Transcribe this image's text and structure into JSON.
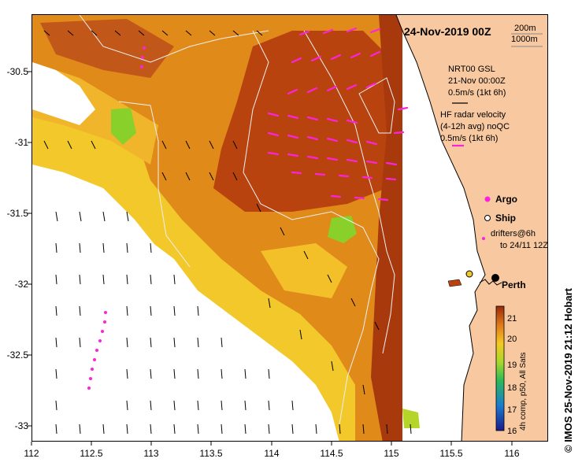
{
  "map": {
    "title": "24-Nov-2019 00Z",
    "credit": "© IMOS 25-Nov-2019 21:12 Hobart",
    "bathy_legend": [
      "200m",
      "1000m"
    ],
    "x_ticks": [
      "112",
      "112.5",
      "113",
      "113.5",
      "114",
      "114.5",
      "115",
      "115.5",
      "116"
    ],
    "y_ticks": [
      "-30.5",
      "-31",
      "-31.5",
      "-32",
      "-32.5",
      "-33"
    ],
    "place_label": "Perth",
    "vector_notes": {
      "model_line1": "NRT00 GSL",
      "model_line2": "21-Nov 00:00Z",
      "model_scale": "0.5m/s (1kt 6h)",
      "radar_line1": "HF radar velocity",
      "radar_line2": "(4-12h avg) noQC",
      "radar_scale": "0.5m/s (1kt 6h)"
    },
    "legend": {
      "argo": "Argo",
      "ship": "Ship",
      "drifters_line1": "drifters@6h",
      "drifters_line2": "to 24/11 12Z"
    },
    "colorbar": {
      "label": "4h comp, p50, All Sats",
      "ticks": [
        "21",
        "20",
        "19",
        "18",
        "17",
        "16"
      ]
    },
    "colors": {
      "land": "#f8c9a0",
      "sst_warm": "#b8430e",
      "sst_mid": "#e08a1a",
      "sst_cool": "#f2c82a",
      "sst_cold": "#8ad02a",
      "radar_arrow": "#ff22dd",
      "bathymetry": "#f0f0f0"
    }
  }
}
